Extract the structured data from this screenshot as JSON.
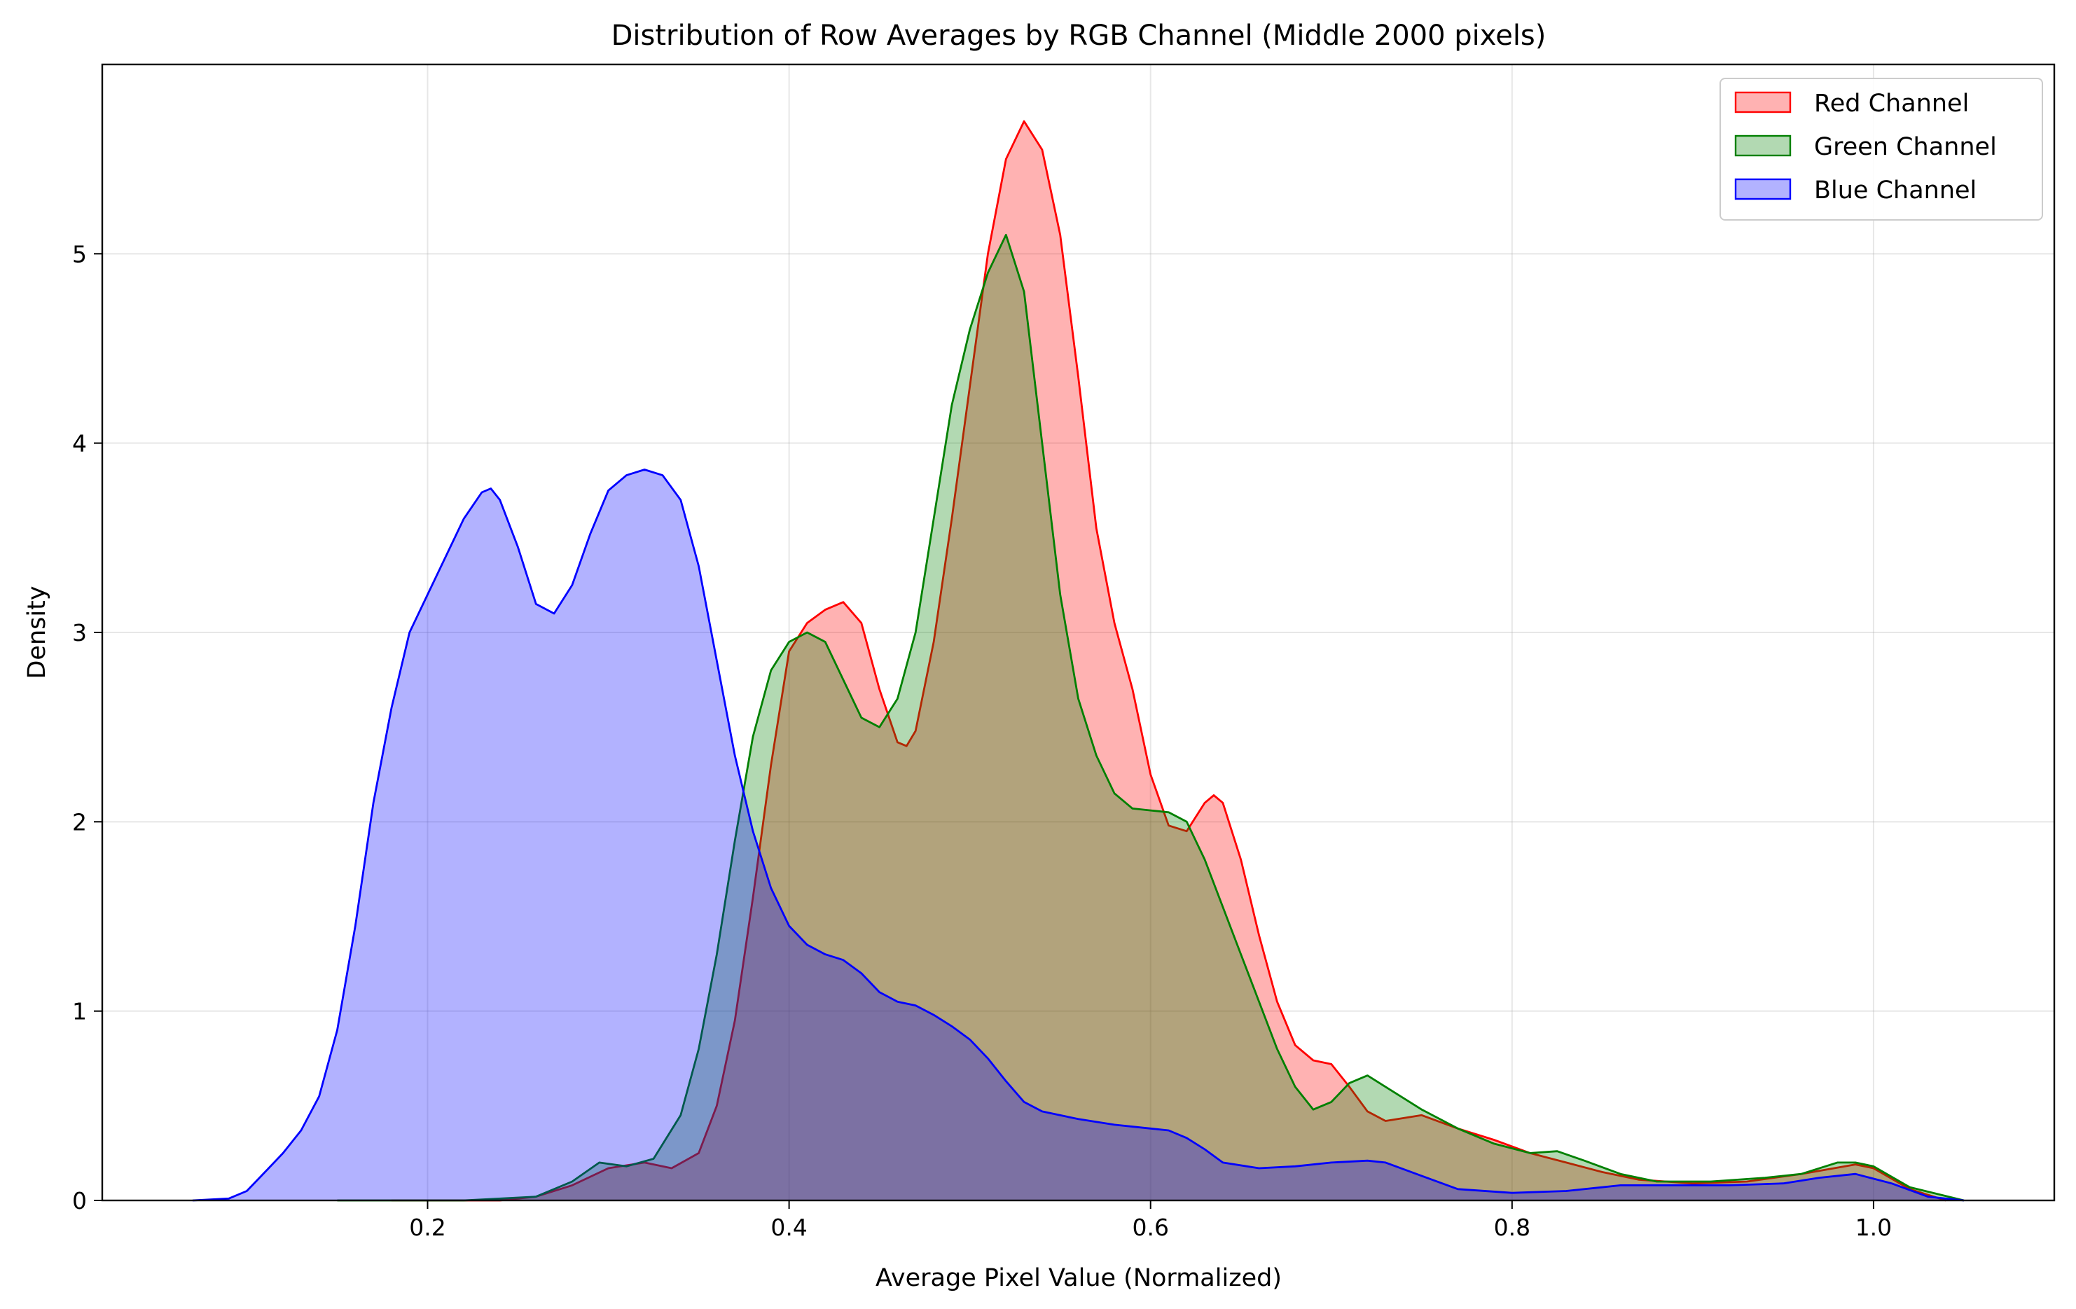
{
  "chart_data": {
    "type": "area",
    "title": "Distribution of Row Averages by RGB Channel (Middle 2000 pixels)",
    "xlabel": "Average Pixel Value (Normalized)",
    "ylabel": "Density",
    "xlim": [
      0.02,
      1.1
    ],
    "ylim": [
      0,
      6.0
    ],
    "xticks": [
      0.2,
      0.4,
      0.6,
      0.8,
      1.0
    ],
    "xtick_labels": [
      "0.2",
      "0.4",
      "0.6",
      "0.8",
      "1.0"
    ],
    "yticks": [
      0,
      1,
      2,
      3,
      4,
      5
    ],
    "ytick_labels": [
      "0",
      "1",
      "2",
      "3",
      "4",
      "5"
    ],
    "grid": true,
    "legend_position": "top-right",
    "series": [
      {
        "name": "Red Channel",
        "stroke": "#ff0000",
        "fill": "#ff0000",
        "fill_opacity": 0.3,
        "points": [
          [
            0.18,
            0.0
          ],
          [
            0.24,
            0.0
          ],
          [
            0.26,
            0.02
          ],
          [
            0.28,
            0.08
          ],
          [
            0.3,
            0.17
          ],
          [
            0.32,
            0.2
          ],
          [
            0.335,
            0.17
          ],
          [
            0.35,
            0.25
          ],
          [
            0.36,
            0.5
          ],
          [
            0.37,
            0.95
          ],
          [
            0.38,
            1.6
          ],
          [
            0.39,
            2.3
          ],
          [
            0.4,
            2.9
          ],
          [
            0.41,
            3.05
          ],
          [
            0.42,
            3.12
          ],
          [
            0.43,
            3.16
          ],
          [
            0.44,
            3.05
          ],
          [
            0.45,
            2.7
          ],
          [
            0.46,
            2.42
          ],
          [
            0.465,
            2.4
          ],
          [
            0.47,
            2.48
          ],
          [
            0.48,
            2.95
          ],
          [
            0.49,
            3.6
          ],
          [
            0.5,
            4.3
          ],
          [
            0.51,
            5.0
          ],
          [
            0.52,
            5.5
          ],
          [
            0.53,
            5.7
          ],
          [
            0.54,
            5.55
          ],
          [
            0.55,
            5.1
          ],
          [
            0.56,
            4.35
          ],
          [
            0.57,
            3.55
          ],
          [
            0.58,
            3.05
          ],
          [
            0.59,
            2.7
          ],
          [
            0.6,
            2.25
          ],
          [
            0.61,
            1.98
          ],
          [
            0.62,
            1.95
          ],
          [
            0.63,
            2.1
          ],
          [
            0.635,
            2.14
          ],
          [
            0.64,
            2.1
          ],
          [
            0.65,
            1.8
          ],
          [
            0.66,
            1.4
          ],
          [
            0.67,
            1.05
          ],
          [
            0.68,
            0.82
          ],
          [
            0.69,
            0.74
          ],
          [
            0.7,
            0.72
          ],
          [
            0.71,
            0.6
          ],
          [
            0.72,
            0.47
          ],
          [
            0.73,
            0.42
          ],
          [
            0.75,
            0.45
          ],
          [
            0.77,
            0.38
          ],
          [
            0.79,
            0.32
          ],
          [
            0.81,
            0.25
          ],
          [
            0.83,
            0.2
          ],
          [
            0.85,
            0.15
          ],
          [
            0.87,
            0.11
          ],
          [
            0.9,
            0.09
          ],
          [
            0.93,
            0.1
          ],
          [
            0.96,
            0.14
          ],
          [
            0.99,
            0.19
          ],
          [
            1.0,
            0.17
          ],
          [
            1.02,
            0.06
          ],
          [
            1.04,
            0.0
          ]
        ]
      },
      {
        "name": "Green Channel",
        "stroke": "#008000",
        "fill": "#008000",
        "fill_opacity": 0.3,
        "points": [
          [
            0.15,
            0.0
          ],
          [
            0.22,
            0.0
          ],
          [
            0.26,
            0.02
          ],
          [
            0.28,
            0.1
          ],
          [
            0.295,
            0.2
          ],
          [
            0.31,
            0.18
          ],
          [
            0.325,
            0.22
          ],
          [
            0.34,
            0.45
          ],
          [
            0.35,
            0.8
          ],
          [
            0.36,
            1.3
          ],
          [
            0.37,
            1.9
          ],
          [
            0.38,
            2.45
          ],
          [
            0.39,
            2.8
          ],
          [
            0.4,
            2.95
          ],
          [
            0.41,
            3.0
          ],
          [
            0.42,
            2.95
          ],
          [
            0.43,
            2.75
          ],
          [
            0.44,
            2.55
          ],
          [
            0.45,
            2.5
          ],
          [
            0.46,
            2.65
          ],
          [
            0.47,
            3.0
          ],
          [
            0.48,
            3.6
          ],
          [
            0.49,
            4.2
          ],
          [
            0.5,
            4.6
          ],
          [
            0.51,
            4.9
          ],
          [
            0.52,
            5.1
          ],
          [
            0.53,
            4.8
          ],
          [
            0.54,
            4.0
          ],
          [
            0.55,
            3.2
          ],
          [
            0.56,
            2.65
          ],
          [
            0.57,
            2.35
          ],
          [
            0.58,
            2.15
          ],
          [
            0.59,
            2.07
          ],
          [
            0.6,
            2.06
          ],
          [
            0.61,
            2.05
          ],
          [
            0.62,
            2.0
          ],
          [
            0.63,
            1.8
          ],
          [
            0.64,
            1.55
          ],
          [
            0.65,
            1.3
          ],
          [
            0.66,
            1.05
          ],
          [
            0.67,
            0.8
          ],
          [
            0.68,
            0.6
          ],
          [
            0.69,
            0.48
          ],
          [
            0.7,
            0.52
          ],
          [
            0.71,
            0.62
          ],
          [
            0.72,
            0.66
          ],
          [
            0.73,
            0.6
          ],
          [
            0.75,
            0.48
          ],
          [
            0.77,
            0.38
          ],
          [
            0.79,
            0.3
          ],
          [
            0.81,
            0.25
          ],
          [
            0.825,
            0.26
          ],
          [
            0.84,
            0.21
          ],
          [
            0.86,
            0.14
          ],
          [
            0.88,
            0.1
          ],
          [
            0.91,
            0.1
          ],
          [
            0.94,
            0.12
          ],
          [
            0.96,
            0.14
          ],
          [
            0.98,
            0.2
          ],
          [
            0.99,
            0.2
          ],
          [
            1.0,
            0.18
          ],
          [
            1.02,
            0.07
          ],
          [
            1.05,
            0.0
          ]
        ]
      },
      {
        "name": "Blue Channel",
        "stroke": "#0000ff",
        "fill": "#0000ff",
        "fill_opacity": 0.3,
        "points": [
          [
            0.07,
            0.0
          ],
          [
            0.09,
            0.01
          ],
          [
            0.1,
            0.05
          ],
          [
            0.11,
            0.15
          ],
          [
            0.12,
            0.25
          ],
          [
            0.13,
            0.37
          ],
          [
            0.14,
            0.55
          ],
          [
            0.15,
            0.9
          ],
          [
            0.16,
            1.45
          ],
          [
            0.17,
            2.1
          ],
          [
            0.18,
            2.6
          ],
          [
            0.19,
            3.0
          ],
          [
            0.2,
            3.2
          ],
          [
            0.21,
            3.4
          ],
          [
            0.22,
            3.6
          ],
          [
            0.23,
            3.74
          ],
          [
            0.235,
            3.76
          ],
          [
            0.24,
            3.7
          ],
          [
            0.25,
            3.45
          ],
          [
            0.26,
            3.15
          ],
          [
            0.27,
            3.1
          ],
          [
            0.28,
            3.25
          ],
          [
            0.29,
            3.52
          ],
          [
            0.3,
            3.75
          ],
          [
            0.31,
            3.83
          ],
          [
            0.32,
            3.86
          ],
          [
            0.33,
            3.83
          ],
          [
            0.34,
            3.7
          ],
          [
            0.35,
            3.35
          ],
          [
            0.36,
            2.85
          ],
          [
            0.37,
            2.35
          ],
          [
            0.38,
            1.95
          ],
          [
            0.39,
            1.65
          ],
          [
            0.4,
            1.45
          ],
          [
            0.41,
            1.35
          ],
          [
            0.42,
            1.3
          ],
          [
            0.43,
            1.27
          ],
          [
            0.44,
            1.2
          ],
          [
            0.45,
            1.1
          ],
          [
            0.46,
            1.05
          ],
          [
            0.47,
            1.03
          ],
          [
            0.48,
            0.98
          ],
          [
            0.49,
            0.92
          ],
          [
            0.5,
            0.85
          ],
          [
            0.51,
            0.75
          ],
          [
            0.52,
            0.63
          ],
          [
            0.53,
            0.52
          ],
          [
            0.54,
            0.47
          ],
          [
            0.56,
            0.43
          ],
          [
            0.58,
            0.4
          ],
          [
            0.6,
            0.38
          ],
          [
            0.61,
            0.37
          ],
          [
            0.62,
            0.33
          ],
          [
            0.63,
            0.27
          ],
          [
            0.64,
            0.2
          ],
          [
            0.66,
            0.17
          ],
          [
            0.68,
            0.18
          ],
          [
            0.7,
            0.2
          ],
          [
            0.72,
            0.21
          ],
          [
            0.73,
            0.2
          ],
          [
            0.75,
            0.13
          ],
          [
            0.77,
            0.06
          ],
          [
            0.8,
            0.04
          ],
          [
            0.83,
            0.05
          ],
          [
            0.86,
            0.08
          ],
          [
            0.89,
            0.08
          ],
          [
            0.92,
            0.08
          ],
          [
            0.95,
            0.09
          ],
          [
            0.97,
            0.12
          ],
          [
            0.99,
            0.14
          ],
          [
            1.01,
            0.09
          ],
          [
            1.03,
            0.02
          ],
          [
            1.05,
            0.0
          ]
        ]
      }
    ]
  }
}
